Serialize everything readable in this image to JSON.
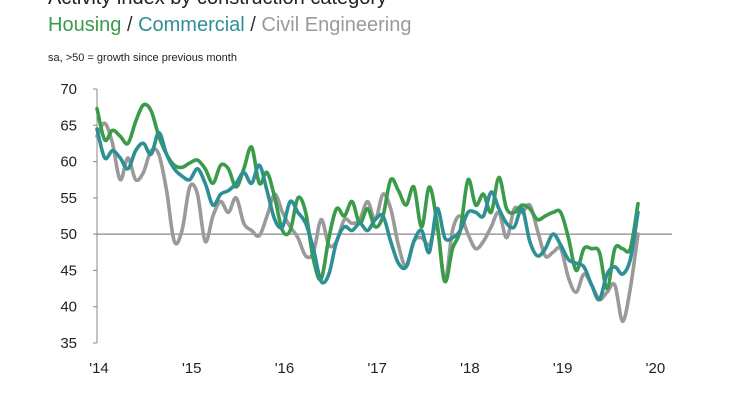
{
  "chart_data": {
    "type": "line",
    "title": "Activity index by construction category",
    "subtitle": "sa, >50 = growth since previous month",
    "legend_separator": " / ",
    "xlabel": "",
    "ylabel": "",
    "ylim": [
      35,
      70
    ],
    "yticks": [
      35,
      40,
      45,
      50,
      55,
      60,
      65,
      70
    ],
    "reference_line": 50,
    "xticks": [
      {
        "value": 2014.0,
        "label": "'14"
      },
      {
        "value": 2015.0,
        "label": "'15"
      },
      {
        "value": 2016.0,
        "label": "'16"
      },
      {
        "value": 2017.0,
        "label": "'17"
      },
      {
        "value": 2018.0,
        "label": "'18"
      },
      {
        "value": 2019.0,
        "label": "'19"
      },
      {
        "value": 2020.0,
        "label": "'20"
      }
    ],
    "x_start": 2014.0,
    "x_step": 0.0833333,
    "series": [
      {
        "name": "Housing",
        "color": "#3a9b4a",
        "values": [
          67.3,
          63.0,
          64.3,
          63.5,
          62.5,
          65.5,
          67.8,
          67.0,
          63.5,
          61.0,
          59.5,
          59.2,
          59.8,
          60.2,
          59.0,
          57.0,
          59.5,
          59.0,
          56.5,
          59.0,
          62.0,
          57.0,
          58.5,
          55.0,
          50.5,
          50.5,
          55.0,
          53.0,
          46.5,
          43.8,
          49.5,
          53.5,
          52.5,
          54.5,
          51.5,
          53.5,
          51.0,
          52.5,
          57.5,
          56.0,
          54.0,
          56.5,
          51.0,
          56.5,
          51.5,
          43.5,
          48.0,
          50.5,
          57.5,
          54.0,
          55.5,
          53.0,
          57.8,
          53.5,
          53.0,
          54.0,
          53.5,
          52.0,
          52.5,
          53.0,
          53.0,
          49.5,
          45.0,
          48.0,
          48.0,
          47.5,
          42.5,
          48.0,
          48.0,
          48.0,
          54.2
        ]
      },
      {
        "name": "Commercial",
        "color": "#2e9095",
        "values": [
          64.5,
          60.5,
          61.5,
          60.5,
          59.0,
          61.5,
          62.5,
          61.0,
          64.0,
          61.0,
          59.0,
          58.0,
          57.5,
          59.0,
          57.0,
          54.0,
          55.5,
          56.0,
          57.0,
          58.5,
          57.0,
          59.5,
          56.0,
          52.0,
          51.0,
          54.5,
          53.0,
          51.5,
          48.0,
          43.5,
          44.5,
          49.0,
          51.0,
          50.5,
          51.5,
          50.5,
          52.0,
          52.5,
          49.0,
          46.0,
          45.5,
          49.0,
          50.5,
          47.5,
          53.5,
          49.5,
          49.5,
          50.5,
          53.0,
          53.0,
          52.5,
          55.8,
          53.5,
          51.5,
          51.0,
          53.5,
          49.0,
          47.0,
          48.0,
          50.0,
          48.5,
          46.5,
          46.0,
          45.5,
          43.0,
          41.0,
          44.5,
          45.5,
          44.5,
          46.5,
          53.0
        ]
      },
      {
        "name": "Civil Engineering",
        "color": "#9a9a9a",
        "values": [
          63.5,
          65.3,
          62.5,
          57.5,
          60.5,
          57.5,
          58.5,
          61.5,
          61.0,
          56.0,
          49.0,
          50.5,
          56.5,
          55.5,
          49.0,
          52.5,
          54.5,
          53.0,
          55.0,
          51.5,
          50.5,
          49.8,
          52.5,
          55.5,
          53.0,
          51.0,
          49.5,
          47.0,
          47.5,
          52.0,
          48.5,
          49.0,
          52.0,
          51.5,
          52.0,
          54.5,
          52.0,
          55.5,
          53.5,
          48.5,
          45.5,
          49.0,
          49.5,
          48.5,
          51.0,
          43.5,
          50.5,
          52.5,
          50.0,
          48.0,
          49.0,
          51.0,
          53.0,
          49.5,
          53.5,
          53.0,
          54.0,
          50.5,
          47.0,
          47.5,
          48.0,
          44.0,
          42.0,
          44.5,
          43.0,
          41.0,
          42.0,
          43.0,
          38.0,
          42.5,
          50.0
        ]
      }
    ]
  }
}
